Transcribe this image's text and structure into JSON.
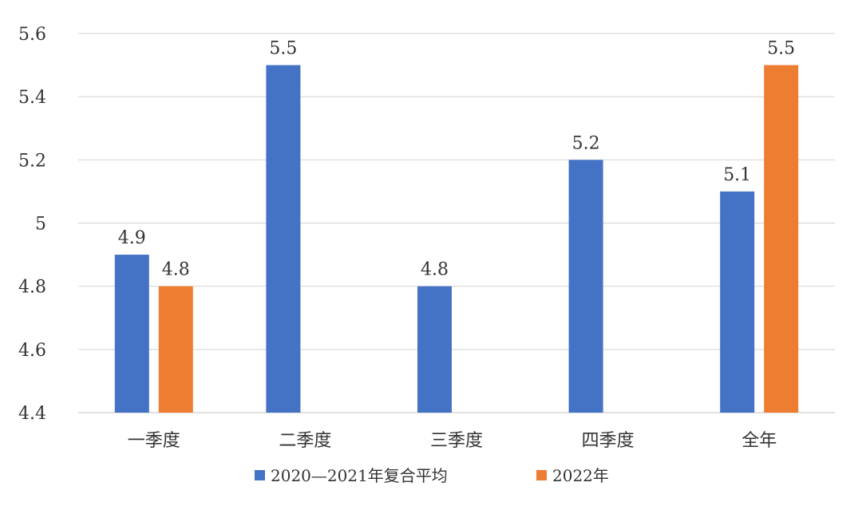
{
  "chart_data": {
    "type": "bar",
    "categories": [
      "一季度",
      "二季度",
      "三季度",
      "四季度",
      "全年"
    ],
    "series": [
      {
        "name": "2020—2021年复合平均",
        "values": [
          4.9,
          5.5,
          4.8,
          5.2,
          5.1
        ],
        "color": "#4472C4"
      },
      {
        "name": "2022年",
        "values": [
          4.8,
          null,
          null,
          null,
          5.5
        ],
        "color": "#ED7D31"
      }
    ],
    "ylim": [
      4.4,
      5.6
    ],
    "yticks": [
      "4.4",
      "4.6",
      "4.8",
      "5",
      "5.2",
      "5.4",
      "5.6"
    ],
    "ytick_values": [
      4.4,
      4.6,
      4.8,
      5.0,
      5.2,
      5.4,
      5.6
    ],
    "data_labels": true,
    "grid": "horizontal",
    "legend_position": "bottom",
    "title": "",
    "xlabel": "",
    "ylabel": ""
  }
}
